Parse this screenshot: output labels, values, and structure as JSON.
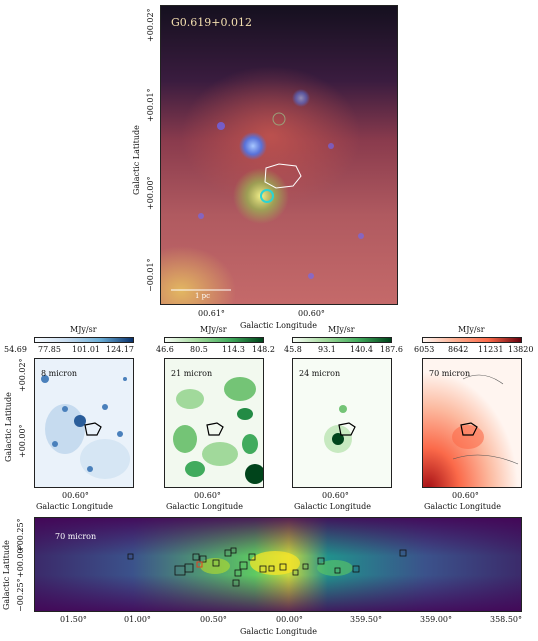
{
  "main_panel": {
    "title": "G0.619+0.012",
    "scalebar_label": "1 pc",
    "xlabel": "Galactic Longitude",
    "ylabel": "Galactic Latitude",
    "xticks": [
      "00.61°",
      "00.60°"
    ],
    "yticks": [
      "+00.02°",
      "+00.01°",
      "+00.00°",
      "−00.01°"
    ]
  },
  "small_panels": [
    {
      "label": "8 micron",
      "colorbar_unit": "MJy/sr",
      "colorbar_ticks": [
        "54.69",
        "77.85",
        "101.01",
        "124.17"
      ],
      "colormap": "Blues",
      "xlabel": "Galactic Longitude",
      "xtick": "00.60°"
    },
    {
      "label": "21 micron",
      "colorbar_unit": "MJy/sr",
      "colorbar_ticks": [
        "46.6",
        "80.5",
        "114.3",
        "148.2"
      ],
      "colormap": "Greens",
      "xlabel": "Galactic Longitude",
      "xtick": "00.60°"
    },
    {
      "label": "24 micron",
      "colorbar_unit": "MJy/sr",
      "colorbar_ticks": [
        "45.8",
        "93.1",
        "140.4",
        "187.6"
      ],
      "colormap": "Greens",
      "xlabel": "Galactic Longitude",
      "xtick": "00.60°"
    },
    {
      "label": "70 micron",
      "colorbar_unit": "MJy/sr",
      "colorbar_ticks": [
        "6053",
        "8642",
        "11231",
        "13820"
      ],
      "colormap": "Reds",
      "xlabel": "Galactic Longitude",
      "xtick": "00.60°"
    }
  ],
  "small_ylabel": "Galactic Latitude",
  "small_yticks": [
    "+00.02°",
    "+00.00°"
  ],
  "bottom_panel": {
    "label": "70 micron",
    "xlabel": "Galactic Longitude",
    "ylabel": "Galactic Latitude",
    "xticks": [
      "01.50°",
      "01.00°",
      "00.50°",
      "00.00°",
      "359.50°",
      "359.00°",
      "358.50°"
    ],
    "yticks": [
      "+00.25°",
      "+00.00°",
      "−00.25°"
    ]
  },
  "colors": {
    "blues": [
      "#f7fbff",
      "#c6dbef",
      "#6baed6",
      "#08306b"
    ],
    "greens": [
      "#f7fcf5",
      "#a1d99b",
      "#41ab5d",
      "#00441b"
    ],
    "reds": [
      "#fff5f0",
      "#fcae91",
      "#fb6a4a",
      "#67000d"
    ],
    "viridis": [
      "#440154",
      "#3b528b",
      "#21918c",
      "#5ec962",
      "#fde725"
    ]
  }
}
